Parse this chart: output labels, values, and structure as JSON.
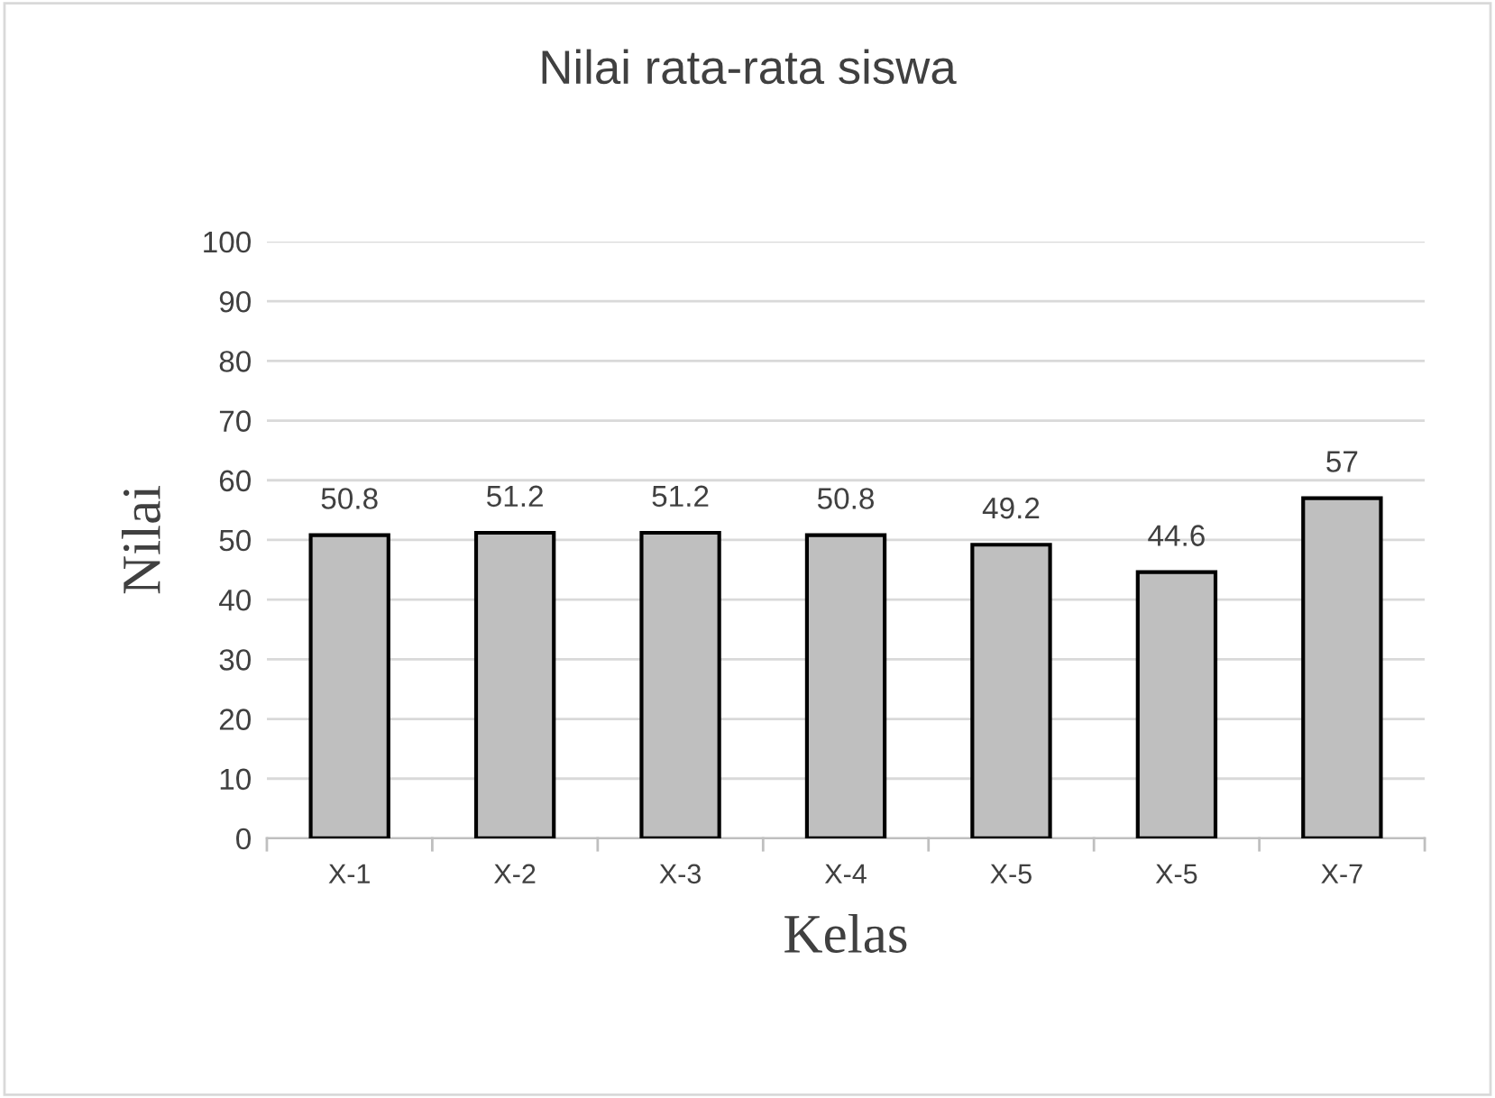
{
  "chart_data": {
    "type": "bar",
    "title": "Nilai rata-rata siswa",
    "xlabel": "Kelas",
    "ylabel": "Nilai",
    "categories": [
      "X-1",
      "X-2",
      "X-3",
      "X-4",
      "X-5",
      "X-5",
      "X-7"
    ],
    "values": [
      50.8,
      51.2,
      51.2,
      50.8,
      49.2,
      44.6,
      57
    ],
    "color": "#bfbfbf",
    "ylim": [
      0,
      100
    ],
    "yticks": [
      0,
      10,
      20,
      30,
      40,
      50,
      60,
      70,
      80,
      90,
      100
    ],
    "grid": "y",
    "data_labels": true
  }
}
